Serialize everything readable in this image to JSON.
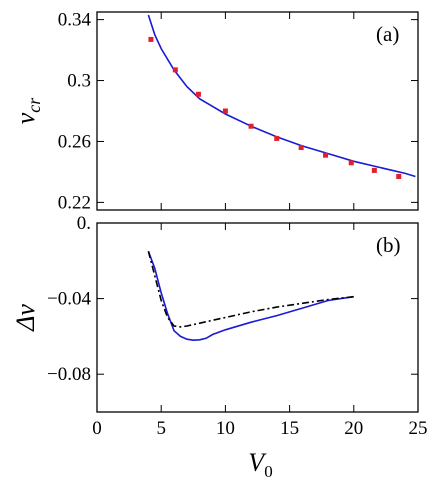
{
  "chart_data": [
    {
      "type": "line",
      "panel_label": "(a)",
      "xlim": [
        0,
        25
      ],
      "ylim": [
        0.215,
        0.345
      ],
      "yticks": [
        0.22,
        0.26,
        0.3,
        0.34
      ],
      "ytick_labels": [
        "0.22",
        "0.26",
        "0.3",
        "0.34"
      ],
      "xticks": [
        0,
        5,
        10,
        15,
        20,
        25
      ],
      "xtick_labels": [],
      "ylabel": "v",
      "ylabel_sub": "cr",
      "series": [
        {
          "style": "solid",
          "color": "#1a1ad6",
          "x": [
            4.0,
            4.5,
            5.0,
            6.0,
            7.0,
            8.0,
            9.0,
            10.0,
            12.0,
            14.0,
            16.0,
            18.0,
            20.0,
            22.0,
            24.0,
            24.8
          ],
          "y": [
            0.343,
            0.33,
            0.321,
            0.307,
            0.296,
            0.288,
            0.283,
            0.278,
            0.27,
            0.263,
            0.257,
            0.252,
            0.247,
            0.243,
            0.239,
            0.237
          ]
        },
        {
          "style": "points",
          "color": "#e0202a",
          "x": [
            4.2,
            6.1,
            7.9,
            10.0,
            12.0,
            14.0,
            15.9,
            17.8,
            19.8,
            21.6,
            23.5
          ],
          "y": [
            0.327,
            0.307,
            0.291,
            0.28,
            0.27,
            0.262,
            0.256,
            0.251,
            0.246,
            0.241,
            0.237
          ]
        }
      ]
    },
    {
      "type": "line",
      "panel_label": "(b)",
      "xlim": [
        0,
        25
      ],
      "ylim": [
        -0.1,
        0.0
      ],
      "yticks": [
        0.0,
        -0.04,
        -0.08
      ],
      "ytick_labels": [
        "0.",
        "−0.04",
        "−0.08"
      ],
      "xticks": [
        0,
        5,
        10,
        15,
        20,
        25
      ],
      "xtick_labels": [
        "0",
        "5",
        "10",
        "15",
        "20",
        "25"
      ],
      "xlabel": "V",
      "xlabel_sub": "0",
      "ylabel": "Δv",
      "series": [
        {
          "style": "solid",
          "color": "#1a1ad6",
          "x": [
            4.0,
            4.5,
            5.0,
            5.5,
            6.0,
            6.5,
            7.0,
            7.5,
            8.0,
            8.5,
            9.0,
            10.0,
            12.0,
            14.0,
            16.0,
            18.0,
            20.0
          ],
          "y": [
            -0.015,
            -0.024,
            -0.037,
            -0.048,
            -0.057,
            -0.06,
            -0.0615,
            -0.062,
            -0.0618,
            -0.061,
            -0.059,
            -0.0565,
            -0.0525,
            -0.049,
            -0.045,
            -0.041,
            -0.039
          ]
        },
        {
          "style": "dash-dot",
          "color": "#000000",
          "x": [
            4.0,
            4.5,
            5.0,
            5.5,
            6.0,
            6.5,
            7.0,
            8.0,
            9.0,
            10.0,
            12.0,
            14.0,
            16.0,
            18.0,
            20.0
          ],
          "y": [
            -0.015,
            -0.028,
            -0.041,
            -0.05,
            -0.0545,
            -0.055,
            -0.0545,
            -0.053,
            -0.0515,
            -0.05,
            -0.047,
            -0.0445,
            -0.0425,
            -0.0405,
            -0.039
          ]
        }
      ]
    }
  ]
}
